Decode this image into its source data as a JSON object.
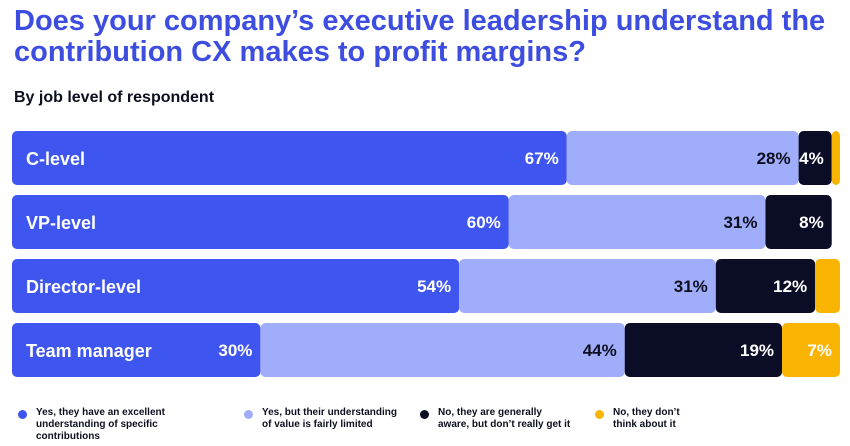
{
  "header": {
    "title": "Does your company’s executive leadership understand the contribution CX makes to profit margins?",
    "subtitle": "By job level of respondent"
  },
  "colors": {
    "title": "#3d4de0",
    "excellent": "#3e55f0",
    "limited": "#9fadfb",
    "aware": "#0b0d26",
    "dont_think": "#f8b400"
  },
  "chart_data": {
    "type": "bar",
    "orientation": "horizontal",
    "stacked": true,
    "title": "Does your company’s executive leadership understand the contribution CX makes to profit margins?",
    "subtitle": "By job level of respondent",
    "categories": [
      "C-level",
      "VP-level",
      "Director-level",
      "Team manager"
    ],
    "series": [
      {
        "name": "Yes, they have an excellent understanding of specific contributions",
        "color": "#3e55f0",
        "values": [
          67,
          60,
          54,
          30
        ],
        "labels": [
          "67%",
          "60%",
          "54%",
          "30%"
        ]
      },
      {
        "name": "Yes, but their understanding of value is fairly limited",
        "color": "#9fadfb",
        "values": [
          28,
          31,
          31,
          44
        ],
        "labels": [
          "28%",
          "31%",
          "31%",
          "44%"
        ]
      },
      {
        "name": "No, they are generally aware, but don’t really get it",
        "color": "#0b0d26",
        "values": [
          4,
          8,
          12,
          19
        ],
        "labels": [
          "4%",
          "8%",
          "12%",
          "19%"
        ]
      },
      {
        "name": "No, they don’t think about it",
        "color": "#f8b400",
        "values": [
          1,
          0,
          3,
          7
        ],
        "labels": [
          "",
          "",
          "",
          "7%"
        ]
      }
    ],
    "xlim": [
      0,
      100
    ],
    "legend": "bottom"
  },
  "legend": {
    "items": [
      {
        "line1": "Yes, they have an excellent",
        "line2": "understanding of specific contributions",
        "color": "#3e55f0"
      },
      {
        "line1": "Yes, but their understanding",
        "line2": "of value is fairly limited",
        "color": "#9fadfb"
      },
      {
        "line1": "No, they are generally",
        "line2": "aware, but don’t really get it",
        "color": "#0b0d26"
      },
      {
        "line1": "No, they don’t",
        "line2": "think about it",
        "color": "#f8b400"
      }
    ]
  }
}
